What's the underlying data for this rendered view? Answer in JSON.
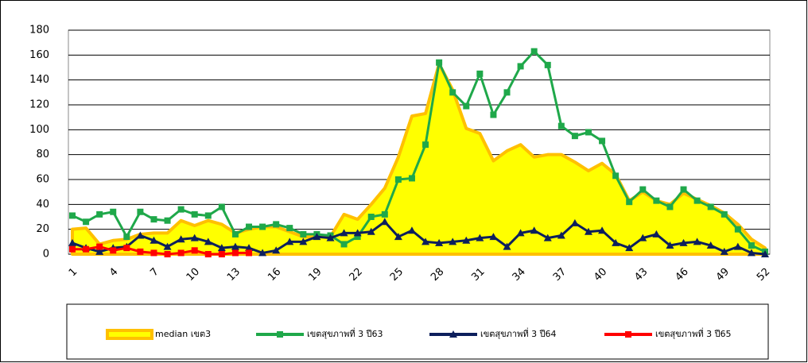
{
  "chart_data": {
    "type": "line",
    "categories": [
      "1",
      null,
      null,
      "4",
      null,
      null,
      "7",
      null,
      null,
      "10",
      null,
      null,
      "13",
      null,
      null,
      "16",
      null,
      null,
      "19",
      null,
      null,
      "22",
      null,
      null,
      "25",
      null,
      null,
      "28",
      null,
      null,
      "31",
      null,
      null,
      "34",
      null,
      null,
      "37",
      null,
      null,
      "40",
      null,
      null,
      "43",
      null,
      null,
      "46",
      null,
      null,
      "49",
      null,
      null,
      "52"
    ],
    "ylim": [
      0,
      180
    ],
    "yticks": [
      0,
      20,
      40,
      60,
      80,
      100,
      120,
      140,
      160,
      180
    ],
    "grid": true,
    "series": [
      {
        "name": "median เขต3",
        "kind": "area",
        "color": "#ffc000",
        "fill": "#ffff00",
        "values": [
          20,
          21,
          8,
          11,
          12,
          16,
          17,
          17,
          27,
          23,
          27,
          24,
          17,
          20,
          22,
          22,
          18,
          14,
          14,
          14,
          32,
          28,
          40,
          53,
          78,
          111,
          113,
          153,
          132,
          101,
          97,
          75,
          83,
          88,
          78,
          80,
          80,
          74,
          67,
          73,
          64,
          43,
          50,
          43,
          40,
          49,
          44,
          39,
          33,
          24,
          12,
          5
        ]
      },
      {
        "name": "เขตสุขภาพที่ 3 ปี63",
        "kind": "line",
        "marker": "square",
        "color": "#1fa84a",
        "values": [
          31,
          26,
          32,
          34,
          14,
          34,
          28,
          27,
          36,
          32,
          31,
          38,
          16,
          22,
          22,
          24,
          21,
          16,
          16,
          15,
          8,
          14,
          30,
          32,
          60,
          61,
          88,
          154,
          130,
          119,
          145,
          112,
          130,
          151,
          163,
          152,
          103,
          95,
          98,
          91,
          63,
          42,
          52,
          43,
          38,
          52,
          43,
          38,
          32,
          20,
          7,
          2
        ]
      },
      {
        "name": "เขตสุขภาพที่ 3 ปี64",
        "kind": "line",
        "marker": "triangle",
        "color": "#0d1f5c",
        "values": [
          9,
          5,
          2,
          5,
          6,
          15,
          11,
          6,
          12,
          13,
          10,
          5,
          6,
          5,
          1,
          3,
          10,
          10,
          14,
          13,
          17,
          17,
          18,
          26,
          14,
          19,
          10,
          9,
          10,
          11,
          13,
          14,
          6,
          17,
          19,
          13,
          15,
          25,
          18,
          19,
          9,
          5,
          13,
          16,
          7,
          9,
          10,
          7,
          2,
          6,
          1,
          0
        ]
      },
      {
        "name": "เขตสุขภาพที่ 3 ปี65",
        "kind": "line",
        "marker": "square",
        "color": "#ff0000",
        "values": [
          4,
          4,
          6,
          3,
          5,
          2,
          1,
          0,
          1,
          3,
          0,
          0,
          1,
          1,
          null,
          null,
          null,
          null,
          null,
          null,
          null,
          null,
          null,
          null,
          null,
          null,
          null,
          null,
          null,
          null,
          null,
          null,
          null,
          null,
          null,
          null,
          null,
          null,
          null,
          null,
          null,
          null,
          null,
          null,
          null,
          null,
          null,
          null,
          null,
          null,
          null,
          null
        ]
      }
    ]
  }
}
